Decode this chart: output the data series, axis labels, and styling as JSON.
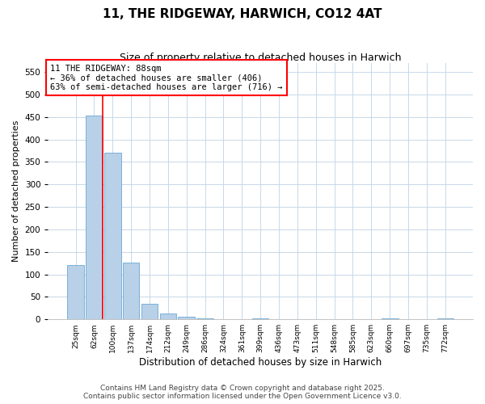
{
  "title": "11, THE RIDGEWAY, HARWICH, CO12 4AT",
  "subtitle": "Size of property relative to detached houses in Harwich",
  "xlabel": "Distribution of detached houses by size in Harwich",
  "ylabel": "Number of detached properties",
  "categories": [
    "25sqm",
    "62sqm",
    "100sqm",
    "137sqm",
    "174sqm",
    "212sqm",
    "249sqm",
    "286sqm",
    "324sqm",
    "361sqm",
    "399sqm",
    "436sqm",
    "473sqm",
    "511sqm",
    "548sqm",
    "585sqm",
    "623sqm",
    "660sqm",
    "697sqm",
    "735sqm",
    "772sqm"
  ],
  "values": [
    120,
    453,
    370,
    127,
    35,
    13,
    5,
    3,
    0,
    0,
    3,
    0,
    0,
    0,
    0,
    0,
    0,
    2,
    0,
    0,
    2
  ],
  "bar_color": "#b8d0e8",
  "bar_edge_color": "#6aaad4",
  "vline_x_index": 1.48,
  "vline_color": "red",
  "annotation_text": "11 THE RIDGEWAY: 88sqm\n← 36% of detached houses are smaller (406)\n63% of semi-detached houses are larger (716) →",
  "annotation_box_color": "white",
  "annotation_box_edge_color": "red",
  "ylim": [
    0,
    570
  ],
  "yticks": [
    0,
    50,
    100,
    150,
    200,
    250,
    300,
    350,
    400,
    450,
    500,
    550
  ],
  "background_color": "white",
  "grid_color": "#c8d8e8",
  "footer_text": "Contains HM Land Registry data © Crown copyright and database right 2025.\nContains public sector information licensed under the Open Government Licence v3.0.",
  "title_fontsize": 11,
  "subtitle_fontsize": 9,
  "annotation_fontsize": 7.5,
  "footer_fontsize": 6.5,
  "ylabel_fontsize": 8,
  "xlabel_fontsize": 8.5,
  "xtick_fontsize": 6.5,
  "ytick_fontsize": 7.5
}
